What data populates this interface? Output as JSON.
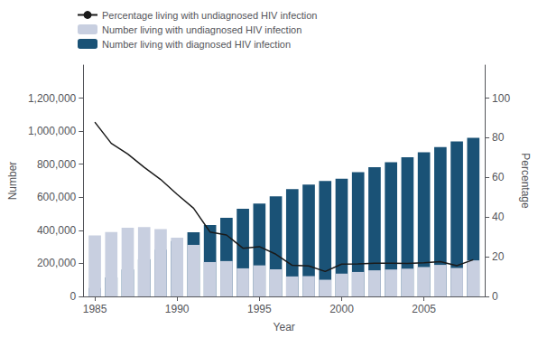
{
  "chart_data": {
    "type": "bar",
    "xlabel": "Year",
    "ylabel": "Number",
    "y2label": "Percentage",
    "x": [
      1985,
      1986,
      1987,
      1988,
      1989,
      1990,
      1991,
      1992,
      1993,
      1994,
      1995,
      1996,
      1997,
      1998,
      1999,
      2000,
      2001,
      2002,
      2003,
      2004,
      2005,
      2006,
      2007,
      2008
    ],
    "xlim": [
      1984.3,
      2008.7
    ],
    "xticks": [
      1985,
      1990,
      1995,
      2000,
      2005
    ],
    "ylim": [
      0,
      1400000
    ],
    "yticks": [
      0,
      {
        "value": 200000,
        "label": "200,000"
      },
      {
        "value": 400000,
        "label": "400,000"
      },
      {
        "value": 600000,
        "label": "600,000"
      },
      {
        "value": 800000,
        "label": "800,000"
      },
      {
        "value": 1000000,
        "label": "1,000,000"
      },
      {
        "value": 1200000,
        "label": "1,200,000"
      }
    ],
    "y2lim": [
      0,
      116.67
    ],
    "y2ticks": [
      0,
      20,
      40,
      60,
      80,
      100
    ],
    "stacked": true,
    "grid": false,
    "legend": "upper left",
    "series": [
      {
        "name": "Number living with diagnosed HIV infection",
        "type": "bar",
        "color": "#1a5276",
        "values": [
          51000,
          115000,
          163000,
          225000,
          283000,
          335000,
          388000,
          432000,
          476000,
          530000,
          562000,
          606000,
          649000,
          677000,
          699000,
          712000,
          752000,
          782000,
          812000,
          842000,
          872000,
          904000,
          938000,
          960000
        ]
      },
      {
        "name": "Number living with undiagnosed HIV infection",
        "type": "bar",
        "color": "#c8cfe0",
        "values": [
          369153,
          390000,
          415000,
          420000,
          407000,
          355000,
          312000,
          208000,
          214000,
          170000,
          188000,
          164000,
          121000,
          123000,
          101000,
          138000,
          148000,
          158000,
          163000,
          168000,
          178000,
          191000,
          172000,
          218250
        ]
      },
      {
        "name": "Percentage living with undiagnosed HIV infection",
        "type": "line",
        "axis": "y2",
        "color": "#1a1a1a",
        "values": [
          87.9,
          77.2,
          71.8,
          65.1,
          59.0,
          51.5,
          44.5,
          32.5,
          31.0,
          24.3,
          25.1,
          21.3,
          15.7,
          15.4,
          12.6,
          16.3,
          16.4,
          16.8,
          16.7,
          16.6,
          17.0,
          17.5,
          15.5,
          18.5
        ]
      }
    ]
  }
}
